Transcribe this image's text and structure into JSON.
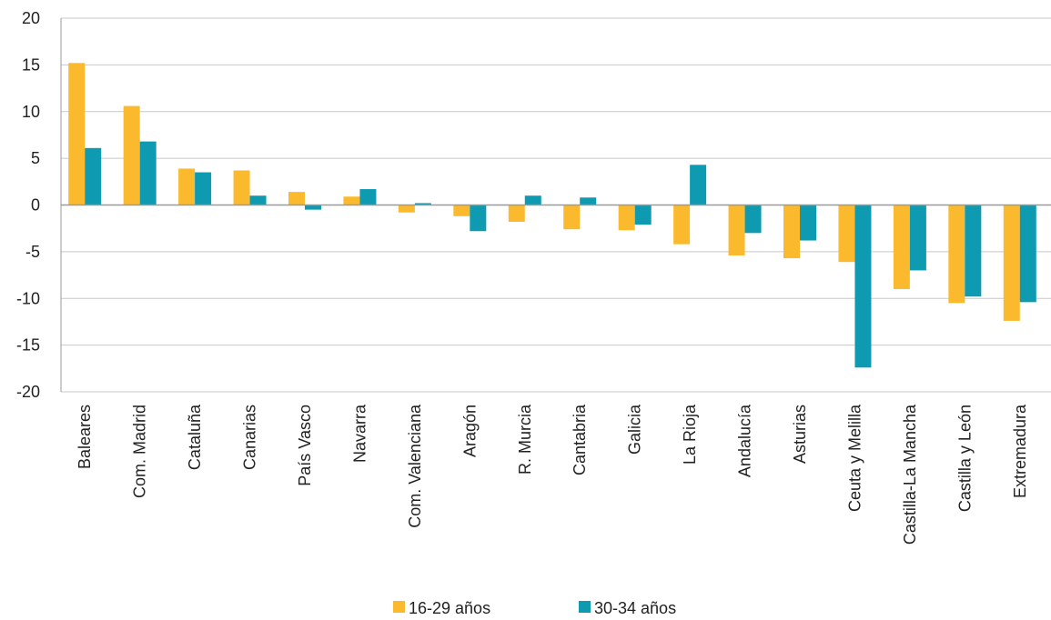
{
  "chart_data": {
    "type": "bar",
    "title": "",
    "xlabel": "",
    "ylabel": "",
    "ylim": [
      -20,
      20
    ],
    "yticks": [
      20,
      15,
      10,
      5,
      0,
      -5,
      -10,
      -15,
      -20
    ],
    "grid": true,
    "legend_position": "bottom",
    "categories": [
      "Baleares",
      "Com. Madrid",
      "Cataluña",
      "Canarias",
      "País Vasco",
      "Navarra",
      "Com. Valenciana",
      "Aragón",
      "R. Murcia",
      "Cantabria",
      "Galicia",
      "La Rioja",
      "Andalucía",
      "Asturias",
      "Ceuta y Melilla",
      "Castilla-La Mancha",
      "Castilla y León",
      "Extremadura"
    ],
    "series": [
      {
        "name": "16-29 años",
        "color": "#FBBA2E",
        "values": [
          15.2,
          10.6,
          3.9,
          3.7,
          1.4,
          0.9,
          -0.8,
          -1.2,
          -1.8,
          -2.6,
          -2.7,
          -4.2,
          -5.4,
          -5.7,
          -6.1,
          -9.0,
          -10.5,
          -12.4
        ]
      },
      {
        "name": "30-34 años",
        "color": "#0E9AB0",
        "values": [
          6.1,
          6.8,
          3.5,
          1.0,
          -0.5,
          1.7,
          0.2,
          -2.8,
          1.0,
          0.8,
          -2.1,
          4.3,
          -3.0,
          -3.8,
          -17.4,
          -7.0,
          -9.8,
          -10.4
        ]
      }
    ]
  }
}
